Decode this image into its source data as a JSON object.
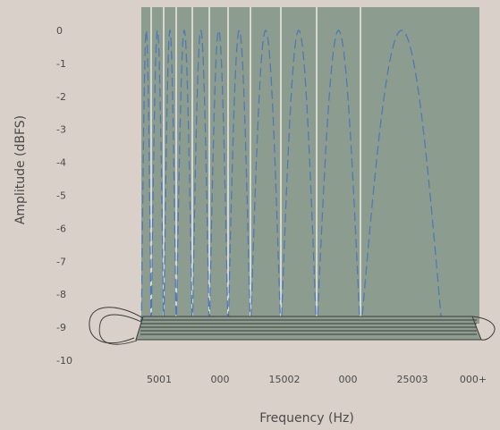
{
  "chart_data": {
    "type": "line",
    "title": "",
    "xlabel": "Frequency (Hz)",
    "ylabel": "Amplitude (dBFS)",
    "ylim": [
      -10,
      0
    ],
    "y_ticks": [
      "0",
      "-1",
      "-2",
      "-3",
      "-4",
      "-5",
      "-6",
      "-7",
      "-8",
      "-9",
      "-10"
    ],
    "x_ticks": [
      "5001",
      "000",
      "15002",
      "000",
      "25003",
      "000+"
    ],
    "grid": "vertical",
    "colors": {
      "background": "#d9d1c9",
      "plot_area": "#8c9c8f",
      "series": "#4f79b8",
      "grid": "#e8e6df",
      "shape_outline": "#3a3a3a",
      "text": "#4a4a4a"
    },
    "series": [
      {
        "style": "dashed",
        "lobes": [
          {
            "peak": 0,
            "min": -9.3
          },
          {
            "peak": 0,
            "min": -9.3
          },
          {
            "peak": 0,
            "min": -9.3
          },
          {
            "peak": 0,
            "min": -9.3
          },
          {
            "peak": 0,
            "min": -9.3
          },
          {
            "peak": 0,
            "min": -9.3
          },
          {
            "peak": 0,
            "min": -9.3
          },
          {
            "peak": 0,
            "min": -9.3
          },
          {
            "peak": 0,
            "min": -9.3
          },
          {
            "peak": 0,
            "min": -9.3
          },
          {
            "peak": 0,
            "min": -9.3
          }
        ]
      }
    ]
  }
}
